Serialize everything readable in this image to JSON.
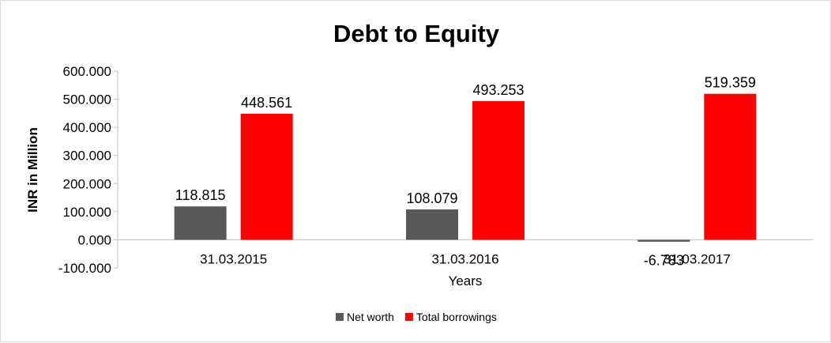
{
  "chart_data": {
    "type": "bar",
    "title": "Debt to Equity",
    "xlabel": "Years",
    "ylabel": "INR in Million",
    "categories": [
      "31.03.2015",
      "31.03.2016",
      "31.03.2017"
    ],
    "series": [
      {
        "name": "Net worth",
        "values": [
          118.815,
          108.079,
          -6.783
        ],
        "labels": [
          "118.815",
          "108.079",
          "-6.783"
        ],
        "color": "#595959"
      },
      {
        "name": "Total borrowings",
        "values": [
          448.561,
          493.253,
          519.359
        ],
        "labels": [
          "448.561",
          "493.253",
          "519.359"
        ],
        "color": "#ff0000"
      }
    ],
    "yticks": [
      -100,
      0,
      100,
      200,
      300,
      400,
      500,
      600
    ],
    "ytick_labels": [
      "-100.000",
      "0.000",
      "100.000",
      "200.000",
      "300.000",
      "400.000",
      "500.000",
      "600.000"
    ],
    "ylim": [
      -100,
      600
    ],
    "grid": false,
    "legend_position": "bottom"
  }
}
